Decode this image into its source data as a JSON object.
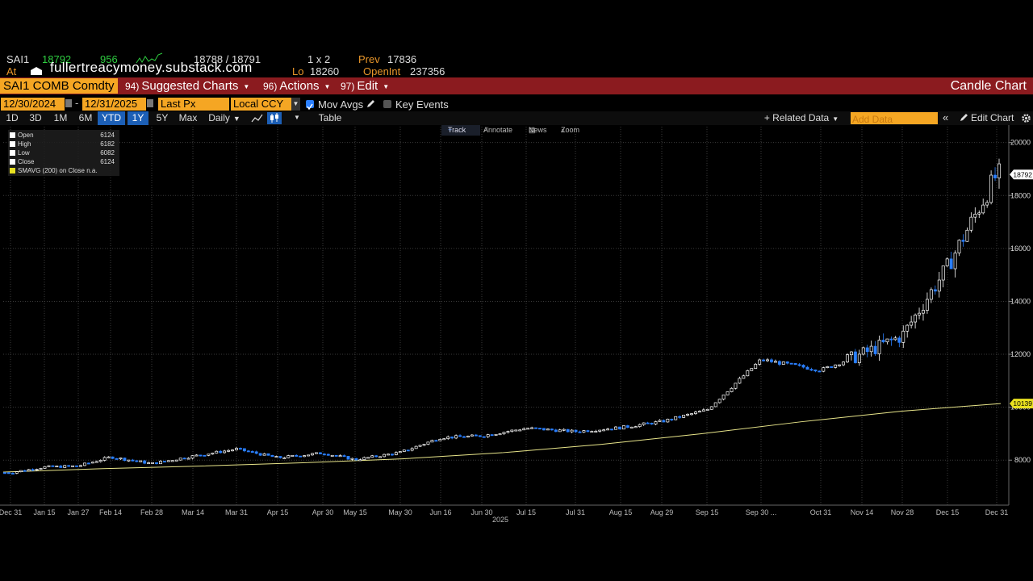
{
  "quote": {
    "ticker": "SAI1",
    "last": "18792",
    "volume": "956",
    "bid_ask": "18788 / 18791",
    "size": "1 x 2",
    "prev_label": "Prev",
    "prev": "17836",
    "at_label": "At",
    "lo_label": "Lo",
    "lo": "18260",
    "openint_label": "OpenInt",
    "openint": "237356"
  },
  "watermark": "fullertreacymoney.substack.com",
  "menubar": {
    "security": "SAI1 COMB Comdty",
    "suggested_num": "94)",
    "suggested": "Suggested Charts",
    "actions_num": "96)",
    "actions": "Actions",
    "edit_num": "97)",
    "edit": "Edit",
    "chart_type": "Candle Chart"
  },
  "params": {
    "start_date": "12/30/2024",
    "end_date": "12/31/2025",
    "field": "Last Px",
    "currency": "Local CCY",
    "mov_avgs": "Mov Avgs",
    "key_events": "Key Events"
  },
  "ranges": {
    "items": [
      "1D",
      "3D",
      "1M",
      "6M",
      "YTD",
      "1Y",
      "5Y",
      "Max"
    ],
    "frequency": "Daily",
    "table": "Table",
    "related": "+ Related Data",
    "add_data_placeholder": "Add Data",
    "edit_chart": "Edit Chart"
  },
  "toolbar": {
    "track": "Track",
    "annotate": "Annotate",
    "news": "News",
    "zoom": "Zoom"
  },
  "legend": {
    "rows": [
      {
        "label": "Open",
        "value": "6124"
      },
      {
        "label": "High",
        "value": "6182"
      },
      {
        "label": "Low",
        "value": "6082"
      },
      {
        "label": "Close",
        "value": "6124"
      }
    ],
    "smavg": "SMAVG (200)  on Close n.a."
  },
  "colors": {
    "up": "#ffffff",
    "down": "#2a7fff",
    "sma": "#e8e58a",
    "grid": "#3a3a3a",
    "menubar": "#8b1b1f",
    "accent": "#f5a623"
  },
  "chart_data": {
    "type": "candlestick",
    "x_labels": [
      "Dec 31",
      "Jan 15",
      "Jan 27",
      "Feb 14",
      "Feb 28",
      "Mar 14",
      "Mar 31",
      "Apr 15",
      "Apr 30",
      "May 15",
      "May 30",
      "Jun 16",
      "Jun 30",
      "Jul 15",
      "Jul 31",
      "Aug 15",
      "Aug 29",
      "Sep 15",
      "Sep 30 ...",
      "Oct 31",
      "Nov 14",
      "Nov 28",
      "Dec 15",
      "Dec 31"
    ],
    "year_label": "2025",
    "y_ticks": [
      8000,
      10000,
      12000,
      14000,
      16000,
      18000,
      20000
    ],
    "ylim": [
      6300,
      20600
    ],
    "last_price": 18792,
    "last_price_label": "18792",
    "sma_last": 10139,
    "sma_last_label": "10139",
    "close_series": [
      {
        "date": "Dec 31",
        "close": 7530
      },
      {
        "date": "Jan 15",
        "close": 7740
      },
      {
        "date": "Jan 27",
        "close": 7780
      },
      {
        "date": "Feb 14",
        "close": 8120
      },
      {
        "date": "Feb 28",
        "close": 7870
      },
      {
        "date": "Mar 14",
        "close": 8150
      },
      {
        "date": "Mar 31",
        "close": 8420
      },
      {
        "date": "Apr 15",
        "close": 8090
      },
      {
        "date": "Apr 30",
        "close": 8270
      },
      {
        "date": "May 15",
        "close": 8020
      },
      {
        "date": "May 30",
        "close": 8290
      },
      {
        "date": "Jun 16",
        "close": 8850
      },
      {
        "date": "Jun 30",
        "close": 8920
      },
      {
        "date": "Jul 15",
        "close": 9210
      },
      {
        "date": "Jul 31",
        "close": 9080
      },
      {
        "date": "Aug 15",
        "close": 9230
      },
      {
        "date": "Aug 29",
        "close": 9460
      },
      {
        "date": "Sep 15",
        "close": 9900
      },
      {
        "date": "Sep 30",
        "close": 11800
      },
      {
        "date": "Oct 31",
        "close": 11400
      },
      {
        "date": "Nov 14",
        "close": 12000
      },
      {
        "date": "Nov 28",
        "close": 12700
      },
      {
        "date": "Dec 15",
        "close": 15300
      },
      {
        "date": "Dec 31",
        "close": 18792
      }
    ],
    "sma_series": [
      7550,
      7680,
      7780,
      7900,
      8050,
      8280,
      8600,
      9000,
      9450,
      9850,
      10139
    ]
  }
}
